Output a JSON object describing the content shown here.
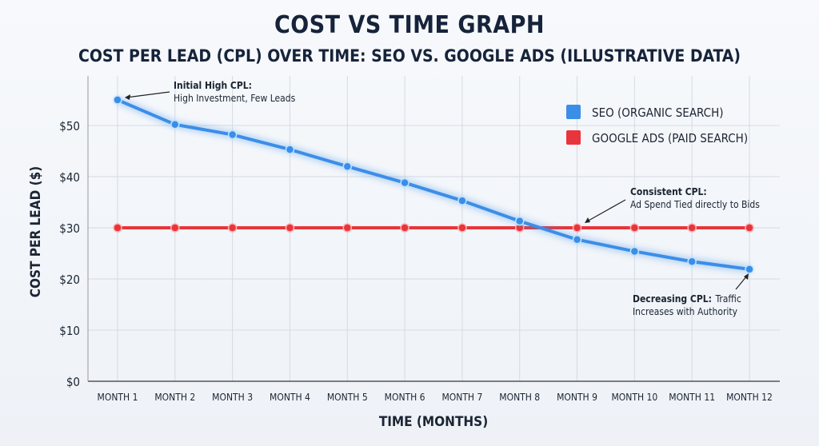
{
  "chart_data": {
    "type": "line",
    "title": "COST VS TIME GRAPH",
    "subtitle": "COST PER LEAD (CPL) OVER TIME: SEO VS. GOOGLE ADS (ILLUSTRATIVE DATA)",
    "xlabel": "TIME (MONTHS)",
    "ylabel": "COST PER LEAD ($)",
    "categories": [
      "MONTH 1",
      "MONTH 2",
      "MONTH 3",
      "MONTH 4",
      "MONTH 5",
      "MONTH 6",
      "MONTH 7",
      "MONTH 8",
      "MONTH 9",
      "MONTH 10",
      "MONTH 11",
      "MONTH 12"
    ],
    "yticks": [
      "$0",
      "$10",
      "$20",
      "$30",
      "$40",
      "$50"
    ],
    "ylim": [
      0,
      60
    ],
    "grid": true,
    "legend_position": "top-right",
    "series": [
      {
        "name": "SEO (ORGANIC SEARCH)",
        "color": "#3b8ee8",
        "values": [
          55,
          50.2,
          48.2,
          45.3,
          42,
          38.8,
          35.3,
          31.3,
          27.7,
          25.4,
          23.4,
          21.9
        ]
      },
      {
        "name": "GOOGLE ADS (PAID SEARCH)",
        "color": "#e8353b",
        "values": [
          30,
          30,
          30,
          30,
          30,
          30,
          30,
          30,
          30,
          30,
          30,
          30
        ]
      }
    ],
    "annotations": [
      {
        "bold": "Initial High CPL:",
        "text": "High Investment, Few Leads"
      },
      {
        "bold": "Consistent CPL:",
        "text": "Ad Spend Tied directly to Bids"
      },
      {
        "bold": "Decreasing CPL:",
        "text": "Traffic",
        "text2": "Increases with Authority"
      }
    ]
  }
}
